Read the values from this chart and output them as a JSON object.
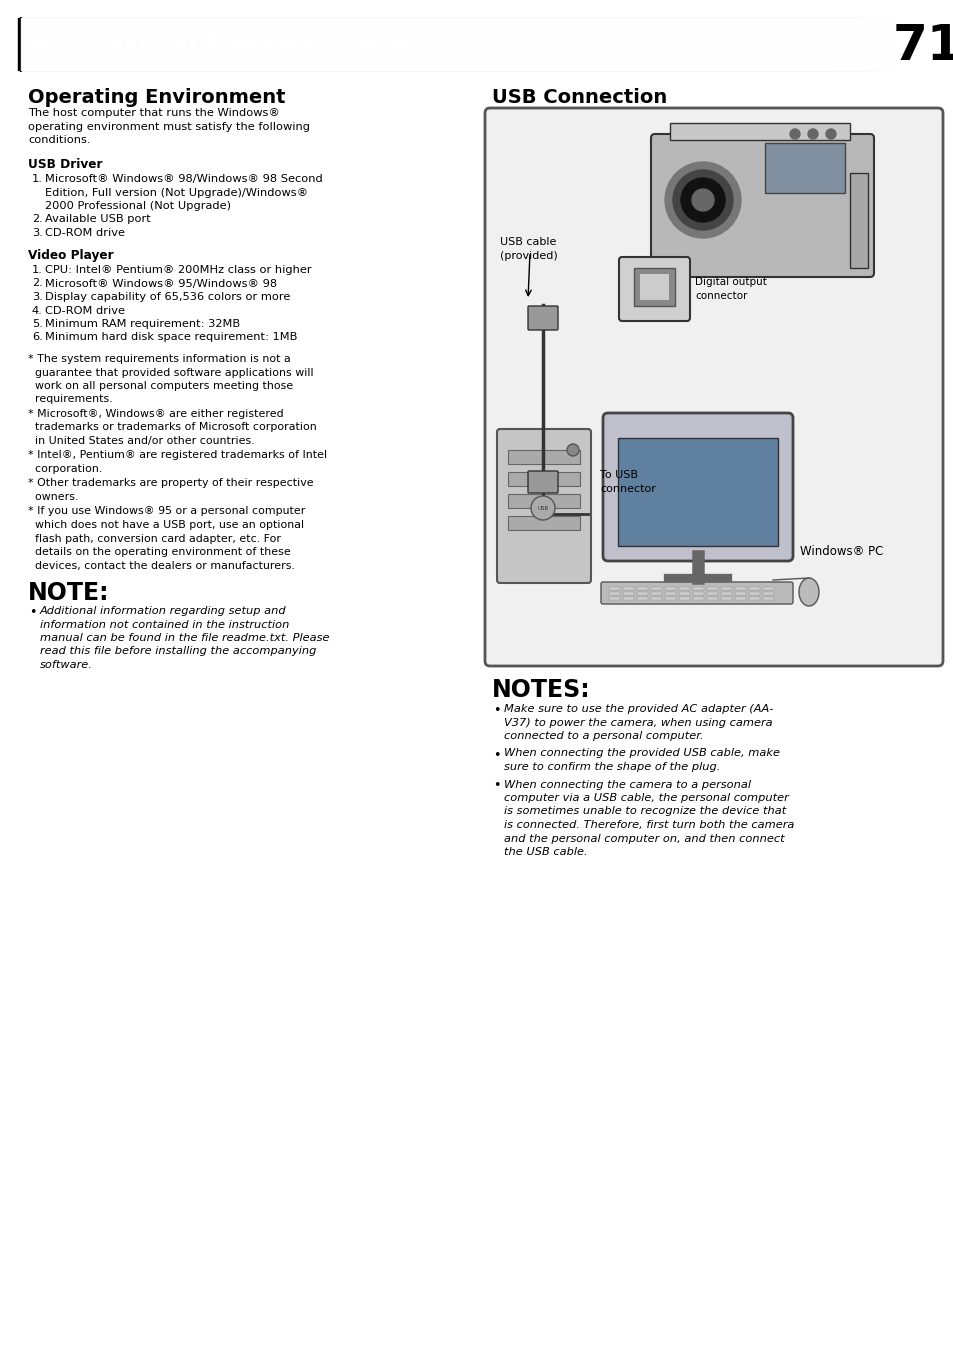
{
  "bg_color": "#ffffff",
  "page_width": 9.54,
  "page_height": 13.55,
  "header_text": "SOFTWARE SECTION FOR Windows®",
  "page_number": "71",
  "op_env_title": "Operating Environment",
  "op_env_intro_lines": [
    "The host computer that runs the Windows®",
    "operating environment must satisfy the following",
    "conditions."
  ],
  "usb_driver_title": "USB Driver",
  "usb_driver_items": [
    [
      "Microsoft® Windows® 98/Windows® 98 Second",
      "Edition, Full version (Not Upgrade)/Windows®",
      "2000 Professional (Not Upgrade)"
    ],
    [
      "Available USB port"
    ],
    [
      "CD-ROM drive"
    ]
  ],
  "video_player_title": "Video Player",
  "video_player_items": [
    "CPU: Intel® Pentium® 200MHz class or higher",
    "Microsoft® Windows® 95/Windows® 98",
    "Display capability of 65,536 colors or more",
    "CD-ROM drive",
    "Minimum RAM requirement: 32MB",
    "Minimum hard disk space requirement: 1MB"
  ],
  "footnotes": [
    [
      "* The system requirements information is not a",
      "  guarantee that provided software applications will",
      "  work on all personal computers meeting those",
      "  requirements."
    ],
    [
      "* Microsoft®, Windows® are either registered",
      "  trademarks or trademarks of Microsoft corporation",
      "  in United States and/or other countries."
    ],
    [
      "* Intel®, Pentium® are registered trademarks of Intel",
      "  corporation."
    ],
    [
      "* Other trademarks are property of their respective",
      "  owners."
    ],
    [
      "* If you use Windows® 95 or a personal computer",
      "  which does not have a USB port, use an optional",
      "  flash path, conversion card adapter, etc. For",
      "  details on the operating environment of these",
      "  devices, contact the dealers or manufacturers."
    ]
  ],
  "note_title": "NOTE:",
  "note_lines": [
    "Additional information regarding setup and",
    "information not contained in the instruction",
    "manual can be found in the file readme.txt. Please",
    "read this file before installing the accompanying",
    "software."
  ],
  "usb_conn_title": "USB Connection",
  "usb_cable_label": [
    "USB cable",
    "(provided)"
  ],
  "digital_out_label": [
    "Digital output",
    "connector"
  ],
  "to_usb_label": [
    "To USB",
    "connector"
  ],
  "windows_pc_label": "Windows® PC",
  "notes_title": "NOTES:",
  "notes_items": [
    [
      "Make sure to use the provided AC adapter (AA-",
      "V37) to power the camera, when using camera",
      "connected to a personal computer."
    ],
    [
      "When connecting the provided USB cable, make",
      "sure to confirm the shape of the plug."
    ],
    [
      "When connecting the camera to a personal",
      "computer via a USB cable, the personal computer",
      "is sometimes unable to recognize the device that",
      "is connected. Therefore, first turn both the camera",
      "and the personal computer on, and then connect",
      "the USB cable."
    ]
  ]
}
